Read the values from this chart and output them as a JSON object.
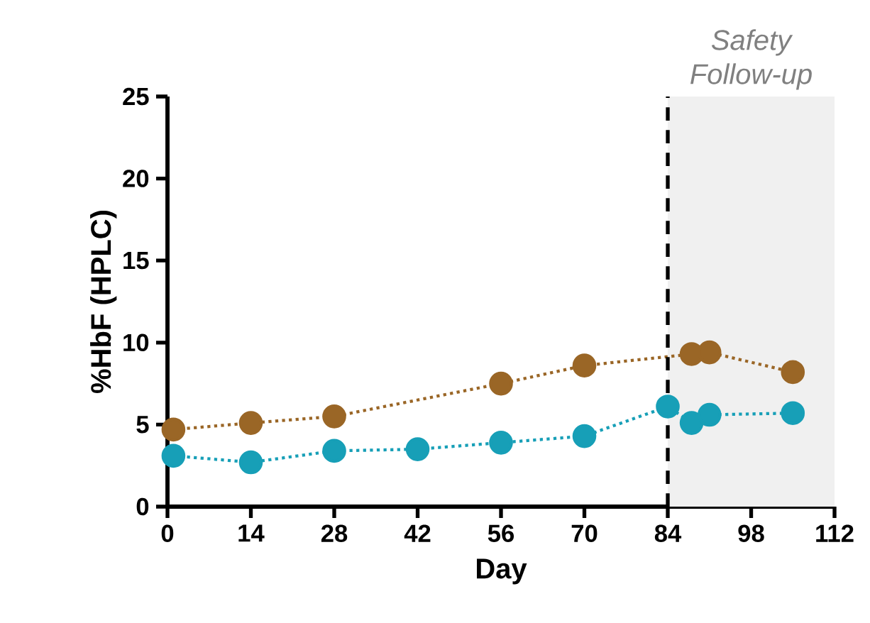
{
  "chart_data": {
    "type": "line",
    "xlabel": "Day",
    "ylabel": "%HbF (HPLC)",
    "xlim": [
      0,
      112
    ],
    "xticks": [
      0,
      14,
      28,
      42,
      56,
      70,
      84,
      98,
      112
    ],
    "ylim": [
      0,
      25
    ],
    "yticks": [
      0,
      5,
      10,
      15,
      20,
      25
    ],
    "series": [
      {
        "color": "#179fb7",
        "x": [
          1,
          14,
          28,
          42,
          56,
          70,
          84,
          88,
          91,
          105
        ],
        "values": [
          3.1,
          2.7,
          3.4,
          3.5,
          3.9,
          4.3,
          6.1,
          5.1,
          5.6,
          5.7
        ]
      },
      {
        "color": "#9a6626",
        "x": [
          1,
          14,
          28,
          56,
          70,
          88,
          91,
          105
        ],
        "values": [
          4.7,
          5.1,
          5.5,
          7.5,
          8.6,
          9.3,
          9.4,
          8.2
        ]
      }
    ],
    "marker": "circle",
    "line_style": "dotted",
    "grid": false,
    "ref_lines": [
      {
        "axis": "x",
        "value": 84,
        "line_style": "dashed",
        "color": "#000000"
      }
    ],
    "bands": [
      {
        "axis": "x",
        "from": 84,
        "to": 112,
        "label": "Safety Follow-up",
        "color": "#f0f0f0"
      }
    ]
  }
}
